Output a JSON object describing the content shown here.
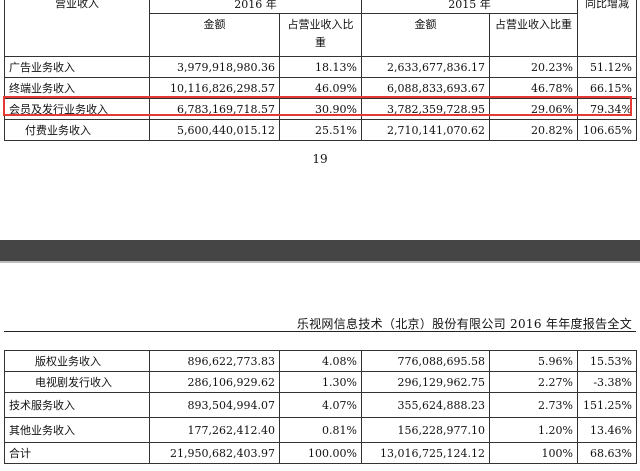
{
  "top_table": {
    "header": {
      "category": "营业收入",
      "year_2016": "2016 年",
      "year_2015": "2015 年",
      "yoy": "同比增减",
      "amount_2016": "金额",
      "share_2016": "占营业收入比重",
      "amount_2015": "金额",
      "share_2015": "占营业收入比重"
    },
    "rows": [
      {
        "name": "广告业务收入",
        "amount_2016": "3,979,918,980.36",
        "share_2016": "18.13%",
        "amount_2015": "2,633,677,836.17",
        "share_2015": "20.23%",
        "yoy": "51.12%"
      },
      {
        "name": "终端业务收入",
        "amount_2016": "10,116,826,298.57",
        "share_2016": "46.09%",
        "amount_2015": "6,088,833,693.67",
        "share_2015": "46.78%",
        "yoy": "66.15%"
      },
      {
        "name": "会员及发行业务收入",
        "amount_2016": "6,783,169,718.57",
        "share_2016": "30.90%",
        "amount_2015": "3,782,359,728.95",
        "share_2015": "29.06%",
        "yoy": "79.34%"
      },
      {
        "name": "付费业务收入",
        "amount_2016": "5,600,440,015.12",
        "share_2016": "25.51%",
        "amount_2015": "2,710,141,070.62",
        "share_2015": "20.82%",
        "yoy": "106.65%"
      }
    ]
  },
  "page_number": "19",
  "report_header": "乐视网信息技术（北京）股份有限公司 2016 年年度报告全文",
  "bottom_table": {
    "rows": [
      {
        "name": "版权业务收入",
        "amount_2016": "896,622,773.83",
        "share_2016": "4.08%",
        "amount_2015": "776,088,695.58",
        "share_2015": "5.96%",
        "yoy": "15.53%"
      },
      {
        "name": "电视剧发行收入",
        "amount_2016": "286,106,929.62",
        "share_2016": "1.30%",
        "amount_2015": "296,129,962.75",
        "share_2015": "2.27%",
        "yoy": "-3.38%"
      },
      {
        "name": "技术服务收入",
        "amount_2016": "893,504,994.07",
        "share_2016": "4.07%",
        "amount_2015": "355,624,888.23",
        "share_2015": "2.73%",
        "yoy": "151.25%"
      },
      {
        "name": "其他业务收入",
        "amount_2016": "177,262,412.40",
        "share_2016": "0.81%",
        "amount_2015": "156,228,977.10",
        "share_2015": "1.20%",
        "yoy": "13.46%"
      },
      {
        "name": "合计",
        "amount_2016": "21,950,682,403.97",
        "share_2016": "100.00%",
        "amount_2015": "13,016,725,124.12",
        "share_2015": "100%",
        "yoy": "68.63%"
      }
    ]
  },
  "colors": {
    "highlight": "#e53935",
    "page_break": "#454545"
  }
}
